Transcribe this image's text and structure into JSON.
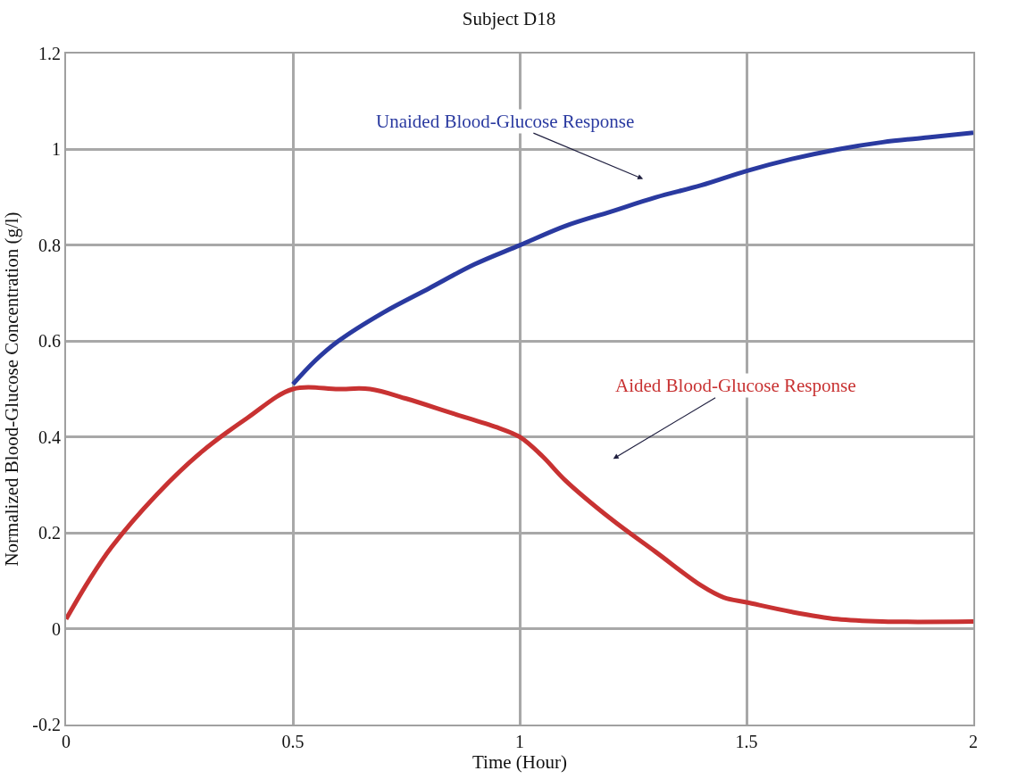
{
  "chart_data": {
    "type": "line",
    "title": "Subject D18",
    "xlabel": "Time (Hour)",
    "ylabel": "Normalized Blood-Glucose Concentration (g/l)",
    "series": [
      {
        "color": "#2a3aa0",
        "x": [
          0.5,
          0.55,
          0.6,
          0.7,
          0.8,
          0.9,
          1.0,
          1.1,
          1.2,
          1.3,
          1.4,
          1.5,
          1.6,
          1.7,
          1.8,
          1.9,
          2.0
        ],
        "values": [
          0.51,
          0.56,
          0.6,
          0.66,
          0.71,
          0.76,
          0.8,
          0.84,
          0.87,
          0.9,
          0.925,
          0.955,
          0.98,
          1.0,
          1.015,
          1.025,
          1.035
        ]
      },
      {
        "color": "#c83232",
        "x": [
          0,
          0.05,
          0.1,
          0.2,
          0.3,
          0.4,
          0.5,
          0.6,
          0.67,
          0.75,
          0.85,
          0.95,
          1.0,
          1.05,
          1.1,
          1.2,
          1.3,
          1.4,
          1.45,
          1.5,
          1.6,
          1.7,
          1.8,
          2.0
        ],
        "values": [
          0.02,
          0.1,
          0.17,
          0.28,
          0.37,
          0.44,
          0.5,
          0.5,
          0.5,
          0.48,
          0.45,
          0.42,
          0.4,
          0.36,
          0.31,
          0.23,
          0.16,
          0.09,
          0.065,
          0.055,
          0.035,
          0.02,
          0.015,
          0.015
        ]
      }
    ],
    "annotations": [
      "Unaided Blood-Glucose Response",
      "Aided Blood-Glucose Response"
    ],
    "xlim": [
      0,
      2
    ],
    "xticks": [
      0,
      0.5,
      1,
      1.5,
      2
    ],
    "ylim": [
      -0.2,
      1.2
    ],
    "yticks": [
      -0.2,
      0,
      0.2,
      0.4,
      0.6,
      0.8,
      1,
      1.2
    ],
    "grid": true,
    "marker": "none",
    "line_style": "solid"
  }
}
